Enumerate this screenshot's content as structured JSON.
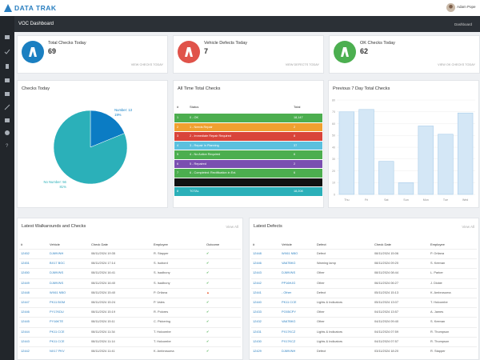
{
  "header": {
    "logo": "DATA TRAK",
    "user": "Adam Pope"
  },
  "topbar": {
    "title": "VOC Dashboard",
    "breadcrumb": "Dashboard"
  },
  "cards": [
    {
      "title": "Total Checks Today",
      "value": "69",
      "link": "VIEW CHECKS TODAY",
      "color": "#1a7fc1"
    },
    {
      "title": "Vehicle Defects Today",
      "value": "7",
      "link": "VIEW DEFECTS TODAY",
      "color": "#e0534a"
    },
    {
      "title": "OK Checks Today",
      "value": "62",
      "link": "VIEW OK CHECKS TODAY",
      "color": "#4caf50"
    }
  ],
  "chart_data": [
    {
      "type": "pie",
      "title": "Checks Today",
      "categories": [
        "Number",
        "No Number"
      ],
      "values": [
        13,
        56
      ],
      "value_labels": [
        "Number: 13",
        "No Number: 56"
      ],
      "percent_labels": [
        "19%",
        "81%"
      ],
      "colors": [
        "#0b7cc4",
        "#2bb0b9"
      ]
    },
    {
      "type": "bar",
      "title": "Previous 7 Day Total Checks",
      "categories": [
        "Thu",
        "Fri",
        "Sat",
        "Sun",
        "Mon",
        "Tue",
        "Wed"
      ],
      "values": [
        70,
        72,
        28,
        10,
        58,
        51,
        69
      ],
      "color": "#d4e7f6",
      "edge": "#a9cdea",
      "ylim": [
        0,
        80
      ],
      "yticks": [
        0,
        10,
        20,
        30,
        40,
        50,
        60,
        70,
        80
      ],
      "grid": true
    }
  ],
  "all_time_checks": {
    "title": "All Time Total Checks",
    "columns": [
      "#",
      "Status",
      "Total"
    ],
    "rows": [
      {
        "n": "1",
        "status": "0 - OK",
        "total": "18,147",
        "color": "#4cae4f"
      },
      {
        "n": "2",
        "status": "1 - Needs Repair",
        "total": "2",
        "color": "#f0a030"
      },
      {
        "n": "3",
        "status": "2 - Immediate Repair Required",
        "total": "8",
        "color": "#d9443a"
      },
      {
        "n": "4",
        "status": "3 - Repair In Planning",
        "total": "37",
        "color": "#5bc0de"
      },
      {
        "n": "5",
        "status": "4 - No Action Required",
        "total": "6",
        "color": "#4cae4f"
      },
      {
        "n": "6",
        "status": "5 - Repaired",
        "total": "2",
        "color": "#7a4fb0"
      },
      {
        "n": "7",
        "status": "6 - Completed: Rectification in Ext.",
        "total": "6",
        "color": "#4cae4f"
      },
      {
        "color": "#111111"
      },
      {
        "n": "8",
        "status": "TOTAL",
        "total": "18,208",
        "color": "#2bb0b9"
      }
    ]
  },
  "walkarounds": {
    "title": "Latest Walkarounds and Checks",
    "link": "View All",
    "columns": [
      "#",
      "Vehicle",
      "Check Date",
      "Employee",
      "Outcome"
    ],
    "outcome_colors": {
      "✔": "#4caf50",
      "▲": "#e8572a"
    },
    "rows": [
      [
        "12452",
        "DJ69VNH",
        "08/11/2024 19:35",
        "R. Stapper",
        "✔"
      ],
      [
        "12451",
        "BX17 BGC",
        "08/11/2024 17:14",
        "S. Isobord",
        "✔"
      ],
      [
        "12450",
        "DJ69VNS",
        "08/11/2024 16:41",
        "S. Isadbony",
        "✔"
      ],
      [
        "12449",
        "DJ69VNS",
        "08/11/2024 16:40",
        "S. Isadbony",
        "✔"
      ],
      [
        "12448",
        "WX61 NBO",
        "08/11/2024 15:40",
        "P. Ortlana",
        "▲"
      ],
      [
        "12447",
        "PK11 BGM",
        "08/11/2024 15:24",
        "P. Vales",
        "✔"
      ],
      [
        "12446",
        "PY17KDU",
        "08/11/2024 15:19",
        "R. Polores",
        "✔"
      ],
      [
        "12445",
        "PY16KTE",
        "08/11/2024 15:11",
        "C. Pickering",
        "✔"
      ],
      [
        "12444",
        "PK11 CCE",
        "08/11/2024 11:34",
        "T. Holcombe",
        "✔"
      ],
      [
        "12443",
        "PK11 CCE",
        "08/11/2024 11:14",
        "T. Holcombe",
        "✔"
      ],
      [
        "12442",
        "NX17 PKV",
        "08/11/2024 11:41",
        "K. Ambrosuma",
        "✔"
      ]
    ]
  },
  "defects": {
    "title": "Latest Defects",
    "link": "View All",
    "columns": [
      "#",
      "Vehicle",
      "Defect",
      "Check Date",
      "Employee"
    ],
    "rows": [
      [
        "12448",
        "WX61 NBO",
        "Defect",
        "08/11/2024 15:06",
        "P. Ortlana"
      ],
      [
        "12446",
        "VA67BKG",
        "Warning lamp",
        "08/11/2024 09:20",
        "S. Keenan"
      ],
      [
        "12443",
        "DJ69VNS",
        "Other",
        "08/11/2024 08:44",
        "L. Parker"
      ],
      [
        "12442",
        "PP16HJG",
        "Other",
        "06/11/2024 06:27",
        "J. Dickie"
      ],
      [
        "12441",
        "- Other",
        "Defect",
        "05/11/2024 15:13",
        "K. Ambrosuma"
      ],
      [
        "12440",
        "PK11 CCE",
        "Lights & Indicators",
        "05/11/2024 13:07",
        "T. Holcombe"
      ],
      [
        "12433",
        "PO05CPY",
        "Other",
        "04/11/2024 13:57",
        "A. James"
      ],
      [
        "12432",
        "VA67BKG",
        "Other",
        "04/11/2024 09:40",
        "S. Keenan"
      ],
      [
        "12431",
        "PX17KCZ",
        "Lights & Indicators",
        "04/11/2024 07:59",
        "R. Thompson"
      ],
      [
        "12430",
        "PX17KCZ",
        "Lights & Indicators",
        "04/11/2024 07:57",
        "R. Thompson"
      ],
      [
        "12429",
        "DJ69VNH",
        "Defect",
        "03/11/2024 18:20",
        "R. Stapper"
      ]
    ]
  }
}
